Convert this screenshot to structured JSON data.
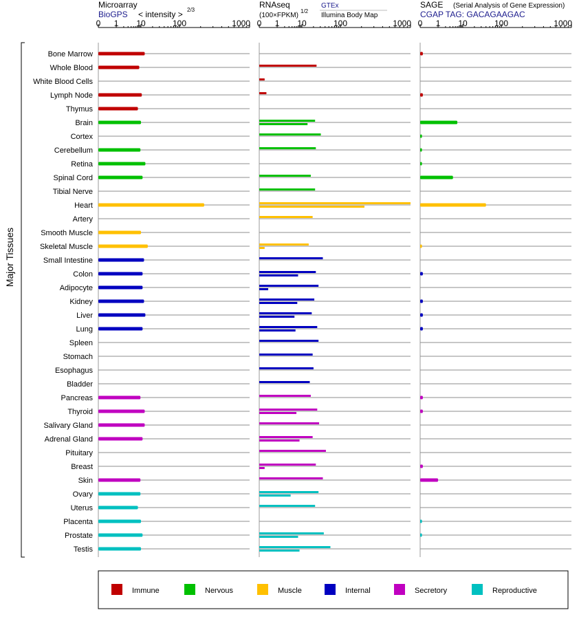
{
  "chart_data": {
    "type": "bar",
    "orientation": "horizontal",
    "y_axis_label": "Major Tissues",
    "tissues": [
      {
        "name": "Bone Marrow",
        "group": "Immune"
      },
      {
        "name": "Whole Blood",
        "group": "Immune"
      },
      {
        "name": "White Blood Cells",
        "group": "Immune"
      },
      {
        "name": "Lymph Node",
        "group": "Immune"
      },
      {
        "name": "Thymus",
        "group": "Immune"
      },
      {
        "name": "Brain",
        "group": "Nervous"
      },
      {
        "name": "Cortex",
        "group": "Nervous"
      },
      {
        "name": "Cerebellum",
        "group": "Nervous"
      },
      {
        "name": "Retina",
        "group": "Nervous"
      },
      {
        "name": "Spinal Cord",
        "group": "Nervous"
      },
      {
        "name": "Tibial Nerve",
        "group": "Nervous"
      },
      {
        "name": "Heart",
        "group": "Muscle"
      },
      {
        "name": "Artery",
        "group": "Muscle"
      },
      {
        "name": "Smooth Muscle",
        "group": "Muscle"
      },
      {
        "name": "Skeletal Muscle",
        "group": "Muscle"
      },
      {
        "name": "Small Intestine",
        "group": "Internal"
      },
      {
        "name": "Colon",
        "group": "Internal"
      },
      {
        "name": "Adipocyte",
        "group": "Internal"
      },
      {
        "name": "Kidney",
        "group": "Internal"
      },
      {
        "name": "Liver",
        "group": "Internal"
      },
      {
        "name": "Lung",
        "group": "Internal"
      },
      {
        "name": "Spleen",
        "group": "Internal"
      },
      {
        "name": "Stomach",
        "group": "Internal"
      },
      {
        "name": "Esophagus",
        "group": "Internal"
      },
      {
        "name": "Bladder",
        "group": "Internal"
      },
      {
        "name": "Pancreas",
        "group": "Secretory"
      },
      {
        "name": "Thyroid",
        "group": "Secretory"
      },
      {
        "name": "Salivary Gland",
        "group": "Secretory"
      },
      {
        "name": "Adrenal Gland",
        "group": "Secretory"
      },
      {
        "name": "Pituitary",
        "group": "Secretory"
      },
      {
        "name": "Breast",
        "group": "Secretory"
      },
      {
        "name": "Skin",
        "group": "Secretory"
      },
      {
        "name": "Ovary",
        "group": "Reproductive"
      },
      {
        "name": "Uterus",
        "group": "Reproductive"
      },
      {
        "name": "Placenta",
        "group": "Reproductive"
      },
      {
        "name": "Prostate",
        "group": "Reproductive"
      },
      {
        "name": "Testis",
        "group": "Reproductive"
      }
    ],
    "panels": [
      {
        "id": "microarray",
        "title": "Microarray",
        "subtitle_source": "BioGPS",
        "subtitle_scale": "< intensity >",
        "scale_exponent": "2/3",
        "ticks": [
          "0",
          "1",
          "10",
          "100",
          "1000"
        ],
        "axis_max": 1000,
        "series": [
          {
            "name": "BioGPS",
            "values": [
              12.5,
              8.5,
              null,
              10.5,
              7.5,
              10,
              null,
              9.5,
              13,
              11,
              null,
              225,
              null,
              10,
              15,
              12,
              11,
              11,
              12,
              13,
              11,
              null,
              null,
              null,
              null,
              9.5,
              12.5,
              12.5,
              11,
              null,
              null,
              9.5,
              9.5,
              7.5,
              10,
              11,
              10
            ]
          }
        ]
      },
      {
        "id": "rnaseq",
        "title": "RNAseq",
        "subtitle_scale": "(100×FPKM)",
        "scale_exponent": "1/2",
        "ticks": [
          "0",
          "1",
          "10",
          "100",
          "1000"
        ],
        "axis_max": 1000,
        "sources": [
          "GTEx",
          "Illumina Body Map"
        ],
        "series": [
          {
            "name": "GTEx",
            "values": [
              null,
              24,
              0.3,
              0.4,
              null,
              22,
              31,
              23,
              null,
              17,
              22,
              1000,
              19,
              null,
              15,
              35,
              23,
              27,
              21,
              18,
              25,
              27,
              19,
              20,
              16,
              17,
              25,
              28,
              19,
              42,
              23,
              35,
              27,
              22,
              null,
              37,
              55
            ]
          },
          {
            "name": "Illumina Body Map",
            "values": [
              null,
              null,
              null,
              null,
              null,
              14,
              null,
              null,
              null,
              null,
              null,
              220,
              null,
              null,
              0.3,
              null,
              7,
              0.5,
              6.5,
              5,
              5.5,
              null,
              null,
              null,
              null,
              null,
              6,
              null,
              8,
              null,
              0.3,
              null,
              3.5,
              null,
              null,
              7,
              8
            ]
          }
        ]
      },
      {
        "id": "sage",
        "title": "SAGE",
        "subtitle_note": "(Serial Analysis of Gene Expression)",
        "subtitle_source": "CGAP  TAG: GACAGAAGAC",
        "ticks": [
          "0",
          "1",
          "10",
          "100",
          "1000"
        ],
        "axis_max": 1000,
        "series": [
          {
            "name": "CGAP",
            "values": [
              0.15,
              null,
              null,
              0.15,
              null,
              6,
              0.1,
              0.1,
              0.1,
              4,
              null,
              40,
              null,
              null,
              0.1,
              null,
              0.15,
              null,
              0.15,
              0.15,
              0.15,
              null,
              null,
              null,
              null,
              0.15,
              0.15,
              null,
              null,
              null,
              0.15,
              1,
              null,
              null,
              0.1,
              0.1,
              null
            ]
          }
        ]
      }
    ],
    "legend": [
      {
        "label": "Immune",
        "color": "#c00000"
      },
      {
        "label": "Nervous",
        "color": "#00c000"
      },
      {
        "label": "Muscle",
        "color": "#ffc000"
      },
      {
        "label": "Internal",
        "color": "#0000c0"
      },
      {
        "label": "Secretory",
        "color": "#c000c0"
      },
      {
        "label": "Reproductive",
        "color": "#00c0c0"
      }
    ],
    "grid": true
  }
}
